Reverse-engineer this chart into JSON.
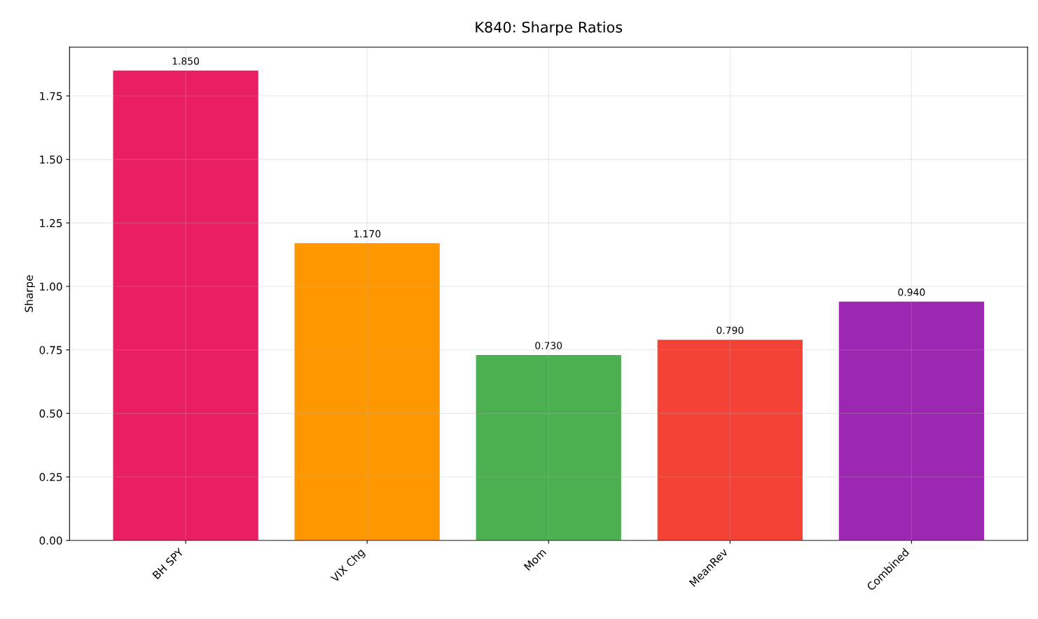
{
  "chart_data": {
    "type": "bar",
    "title": "K840: Sharpe Ratios",
    "ylabel": "Sharpe",
    "categories": [
      "BH SPY",
      "VIX Chg",
      "Mom",
      "MeanRev",
      "Combined"
    ],
    "values": [
      1.85,
      1.17,
      0.73,
      0.79,
      0.94
    ],
    "value_labels": [
      "1.850",
      "1.170",
      "0.730",
      "0.790",
      "0.940"
    ],
    "colors": [
      "#e91e63",
      "#ff9800",
      "#4caf50",
      "#f44336",
      "#9c27b0"
    ],
    "ylim": [
      0,
      1.9425
    ],
    "yticks": [
      {
        "value": 0,
        "label": "0.00"
      },
      {
        "value": 0.25,
        "label": "0.25"
      },
      {
        "value": 0.5,
        "label": "0.50"
      },
      {
        "value": 0.75,
        "label": "0.75"
      },
      {
        "value": 1.0,
        "label": "1.00"
      },
      {
        "value": 1.25,
        "label": "1.25"
      },
      {
        "value": 1.5,
        "label": "1.50"
      },
      {
        "value": 1.75,
        "label": "1.75"
      }
    ],
    "grid": true
  }
}
